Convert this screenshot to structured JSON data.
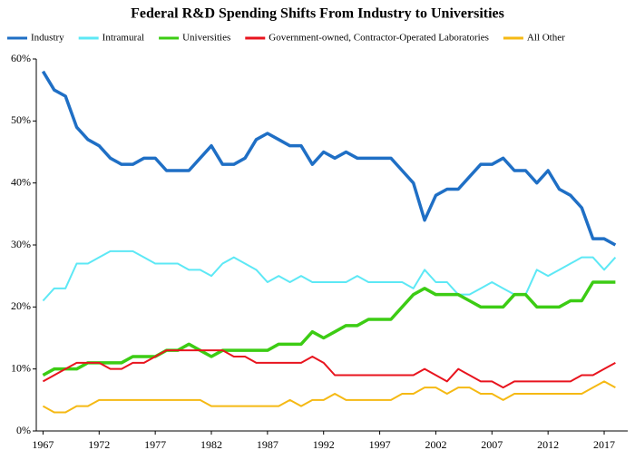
{
  "chart_data": {
    "type": "line",
    "title": "Federal R&D Spending Shifts From Industry to Universities",
    "x": [
      1967,
      1968,
      1969,
      1970,
      1971,
      1972,
      1973,
      1974,
      1975,
      1976,
      1977,
      1978,
      1979,
      1980,
      1981,
      1982,
      1983,
      1984,
      1985,
      1986,
      1987,
      1988,
      1989,
      1990,
      1991,
      1992,
      1993,
      1994,
      1995,
      1996,
      1997,
      1998,
      1999,
      2000,
      2001,
      2002,
      2003,
      2004,
      2005,
      2006,
      2007,
      2008,
      2009,
      2010,
      2011,
      2012,
      2013,
      2014,
      2015,
      2016,
      2017,
      2018
    ],
    "series": [
      {
        "name": "Industry",
        "color": "#1f6fc5",
        "width": 3.5,
        "values": [
          58,
          55,
          54,
          49,
          47,
          46,
          44,
          43,
          43,
          44,
          44,
          42,
          42,
          42,
          44,
          46,
          43,
          43,
          44,
          47,
          48,
          47,
          46,
          46,
          43,
          45,
          44,
          45,
          44,
          44,
          44,
          44,
          42,
          40,
          34,
          38,
          39,
          39,
          41,
          43,
          43,
          44,
          42,
          42,
          40,
          42,
          39,
          38,
          36,
          31,
          31,
          30
        ]
      },
      {
        "name": "Intramural",
        "color": "#5de8f5",
        "width": 2,
        "values": [
          21,
          23,
          23,
          27,
          27,
          28,
          29,
          29,
          29,
          28,
          27,
          27,
          27,
          26,
          26,
          25,
          27,
          28,
          27,
          26,
          24,
          25,
          24,
          25,
          24,
          24,
          24,
          24,
          25,
          24,
          24,
          24,
          24,
          23,
          26,
          24,
          24,
          22,
          22,
          23,
          24,
          23,
          22,
          22,
          26,
          25,
          26,
          27,
          28,
          28,
          26,
          28
        ]
      },
      {
        "name": "Universities",
        "color": "#3ccc14",
        "width": 3.5,
        "values": [
          9,
          10,
          10,
          10,
          11,
          11,
          11,
          11,
          12,
          12,
          12,
          13,
          13,
          14,
          13,
          12,
          13,
          13,
          13,
          13,
          13,
          14,
          14,
          14,
          16,
          15,
          16,
          17,
          17,
          18,
          18,
          18,
          20,
          22,
          23,
          22,
          22,
          22,
          21,
          20,
          20,
          20,
          22,
          22,
          20,
          20,
          20,
          21,
          21,
          24,
          24,
          24
        ]
      },
      {
        "name": "Government-owned, Contractor-Operated Laboratories",
        "color": "#e8141e",
        "width": 2,
        "values": [
          8,
          9,
          10,
          11,
          11,
          11,
          10,
          10,
          11,
          11,
          12,
          13,
          13,
          13,
          13,
          13,
          13,
          12,
          12,
          11,
          11,
          11,
          11,
          11,
          12,
          11,
          9,
          9,
          9,
          9,
          9,
          9,
          9,
          9,
          10,
          9,
          8,
          10,
          9,
          8,
          8,
          7,
          8,
          8,
          8,
          8,
          8,
          8,
          9,
          9,
          10,
          11
        ]
      },
      {
        "name": "All Other",
        "color": "#f5b914",
        "width": 2,
        "values": [
          4,
          3,
          3,
          4,
          4,
          5,
          5,
          5,
          5,
          5,
          5,
          5,
          5,
          5,
          5,
          4,
          4,
          4,
          4,
          4,
          4,
          4,
          5,
          4,
          5,
          5,
          6,
          5,
          5,
          5,
          5,
          5,
          6,
          6,
          7,
          7,
          6,
          7,
          7,
          6,
          6,
          5,
          6,
          6,
          6,
          6,
          6,
          6,
          6,
          7,
          8,
          7
        ]
      }
    ],
    "xlim": [
      1966.4,
      2019.1
    ],
    "xticks": [
      1967,
      1972,
      1977,
      1982,
      1987,
      1992,
      1997,
      2002,
      2007,
      2012,
      2017
    ],
    "ylim": [
      0,
      60
    ],
    "yticks": [
      {
        "value": 0,
        "label": "0%"
      },
      {
        "value": 10,
        "label": "10%"
      },
      {
        "value": 20,
        "label": "20%"
      },
      {
        "value": 30,
        "label": "30%"
      },
      {
        "value": 40,
        "label": "40%"
      },
      {
        "value": 50,
        "label": "50%"
      },
      {
        "value": 60,
        "label": "60%"
      }
    ],
    "grid": false
  }
}
